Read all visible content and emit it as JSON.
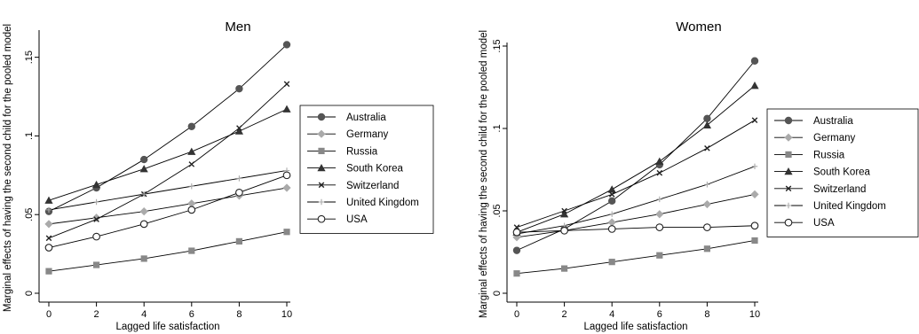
{
  "chart_data": [
    {
      "type": "line",
      "title": "Men",
      "xlabel": "Lagged life satisfaction",
      "ylabel": "Marginal effects of having the second child for the pooled model",
      "x": [
        0,
        2,
        4,
        6,
        8,
        10
      ],
      "xticks": [
        "0",
        "2",
        "4",
        "6",
        "8",
        "10"
      ],
      "yticks": [
        {
          "v": 0,
          "label": "0"
        },
        {
          "v": 0.05,
          "label": ".05"
        },
        {
          "v": 0.1,
          "label": ".1"
        },
        {
          "v": 0.15,
          "label": ".15"
        }
      ],
      "xlim": [
        0,
        10
      ],
      "ylim": [
        0,
        0.165
      ],
      "legend_position": "right",
      "series": [
        {
          "name": "Australia",
          "marker": "circle-filled",
          "color": "#555555",
          "values": [
            0.052,
            0.067,
            0.085,
            0.106,
            0.13,
            0.158
          ]
        },
        {
          "name": "Germany",
          "marker": "diamond",
          "color": "#aaaaaa",
          "values": [
            0.044,
            0.048,
            0.052,
            0.057,
            0.062,
            0.067
          ]
        },
        {
          "name": "Russia",
          "marker": "square",
          "color": "#888888",
          "values": [
            0.014,
            0.018,
            0.022,
            0.027,
            0.033,
            0.039
          ]
        },
        {
          "name": "South Korea",
          "marker": "triangle",
          "color": "#333333",
          "values": [
            0.059,
            0.069,
            0.079,
            0.09,
            0.103,
            0.117
          ]
        },
        {
          "name": "Switzerland",
          "marker": "x",
          "color": "#222222",
          "values": [
            0.035,
            0.047,
            0.063,
            0.082,
            0.105,
            0.133
          ]
        },
        {
          "name": "United Kingdom",
          "marker": "plus",
          "color": "#aaaaaa",
          "values": [
            0.053,
            0.058,
            0.063,
            0.068,
            0.073,
            0.078
          ]
        },
        {
          "name": "USA",
          "marker": "circle-open",
          "color": "#222222",
          "values": [
            0.029,
            0.036,
            0.044,
            0.053,
            0.064,
            0.075
          ]
        }
      ]
    },
    {
      "type": "line",
      "title": "Women",
      "xlabel": "Lagged life satisfaction",
      "ylabel": "Marginal effects of having the second child for the pooled model",
      "x": [
        0,
        2,
        4,
        6,
        8,
        10
      ],
      "xticks": [
        "0",
        "2",
        "4",
        "6",
        "8",
        "10"
      ],
      "yticks": [
        {
          "v": 0,
          "label": "0"
        },
        {
          "v": 0.05,
          "label": ".05"
        },
        {
          "v": 0.1,
          "label": ".1"
        },
        {
          "v": 0.15,
          "label": ".15"
        }
      ],
      "xlim": [
        0,
        10
      ],
      "ylim": [
        0,
        0.15
      ],
      "legend_position": "right",
      "series": [
        {
          "name": "Australia",
          "marker": "circle-filled",
          "color": "#555555",
          "values": [
            0.026,
            0.039,
            0.056,
            0.078,
            0.106,
            0.141
          ]
        },
        {
          "name": "Germany",
          "marker": "diamond",
          "color": "#aaaaaa",
          "values": [
            0.034,
            0.038,
            0.043,
            0.048,
            0.054,
            0.06
          ]
        },
        {
          "name": "Russia",
          "marker": "square",
          "color": "#888888",
          "values": [
            0.012,
            0.015,
            0.019,
            0.023,
            0.027,
            0.032
          ]
        },
        {
          "name": "South Korea",
          "marker": "triangle",
          "color": "#333333",
          "values": [
            0.037,
            0.048,
            0.063,
            0.08,
            0.102,
            0.126
          ]
        },
        {
          "name": "Switzerland",
          "marker": "x",
          "color": "#222222",
          "values": [
            0.04,
            0.05,
            0.06,
            0.073,
            0.088,
            0.105
          ]
        },
        {
          "name": "United Kingdom",
          "marker": "plus",
          "color": "#aaaaaa",
          "values": [
            0.036,
            0.041,
            0.048,
            0.057,
            0.066,
            0.077
          ]
        },
        {
          "name": "USA",
          "marker": "circle-open",
          "color": "#222222",
          "values": [
            0.037,
            0.038,
            0.039,
            0.04,
            0.04,
            0.041
          ]
        }
      ]
    }
  ]
}
